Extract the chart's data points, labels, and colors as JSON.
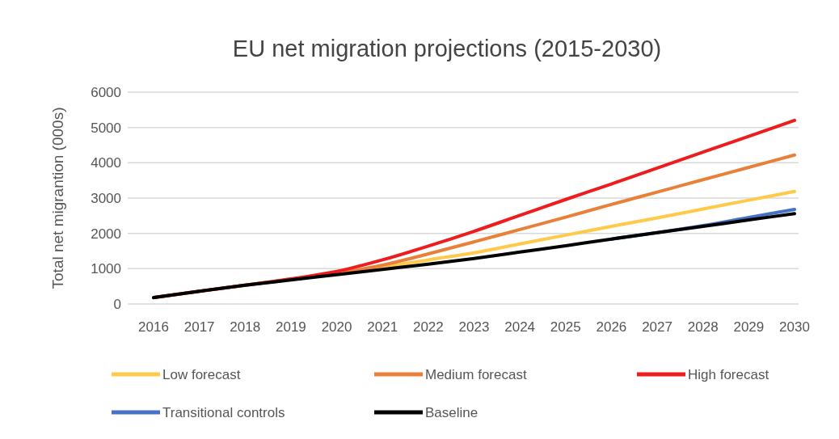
{
  "chart_data": {
    "type": "line",
    "title": "EU net migration projections (2015-2030)",
    "ylabel": "Total net migrantion (000s)",
    "categories": [
      "2016",
      "2017",
      "2018",
      "2019",
      "2020",
      "2021",
      "2022",
      "2023",
      "2024",
      "2025",
      "2026",
      "2027",
      "2028",
      "2029",
      "2030"
    ],
    "ylim": [
      0,
      6000
    ],
    "yticks": [
      0,
      1000,
      2000,
      3000,
      4000,
      5000,
      6000
    ],
    "grid": "y",
    "legend": "bottom",
    "marker": "none",
    "line_style": "solid",
    "series": [
      {
        "name": "Low forecast",
        "color": "#ffc94a",
        "values": [
          null,
          null,
          null,
          null,
          860,
          1040,
          1250,
          1450,
          1700,
          1950,
          2200,
          2440,
          2690,
          2940,
          3190
        ]
      },
      {
        "name": "Medium forecast",
        "color": "#e8803a",
        "values": [
          180,
          360,
          530,
          700,
          870,
          1100,
          1420,
          1760,
          2110,
          2460,
          2820,
          3170,
          3520,
          3870,
          4220
        ]
      },
      {
        "name": "High forecast",
        "color": "#ee1c1c",
        "values": [
          180,
          360,
          530,
          710,
          920,
          1250,
          1640,
          2060,
          2510,
          2960,
          3400,
          3850,
          4300,
          4750,
          5200
        ]
      },
      {
        "name": "Transitional controls",
        "color": "#4472c4",
        "values": [
          null,
          null,
          null,
          null,
          null,
          null,
          null,
          null,
          null,
          null,
          1840,
          2020,
          2220,
          2450,
          2680
        ]
      },
      {
        "name": "Baseline",
        "color": "#000000",
        "values": [
          180,
          360,
          530,
          680,
          830,
          980,
          1130,
          1290,
          1470,
          1650,
          1840,
          2020,
          2200,
          2380,
          2560
        ]
      }
    ]
  }
}
